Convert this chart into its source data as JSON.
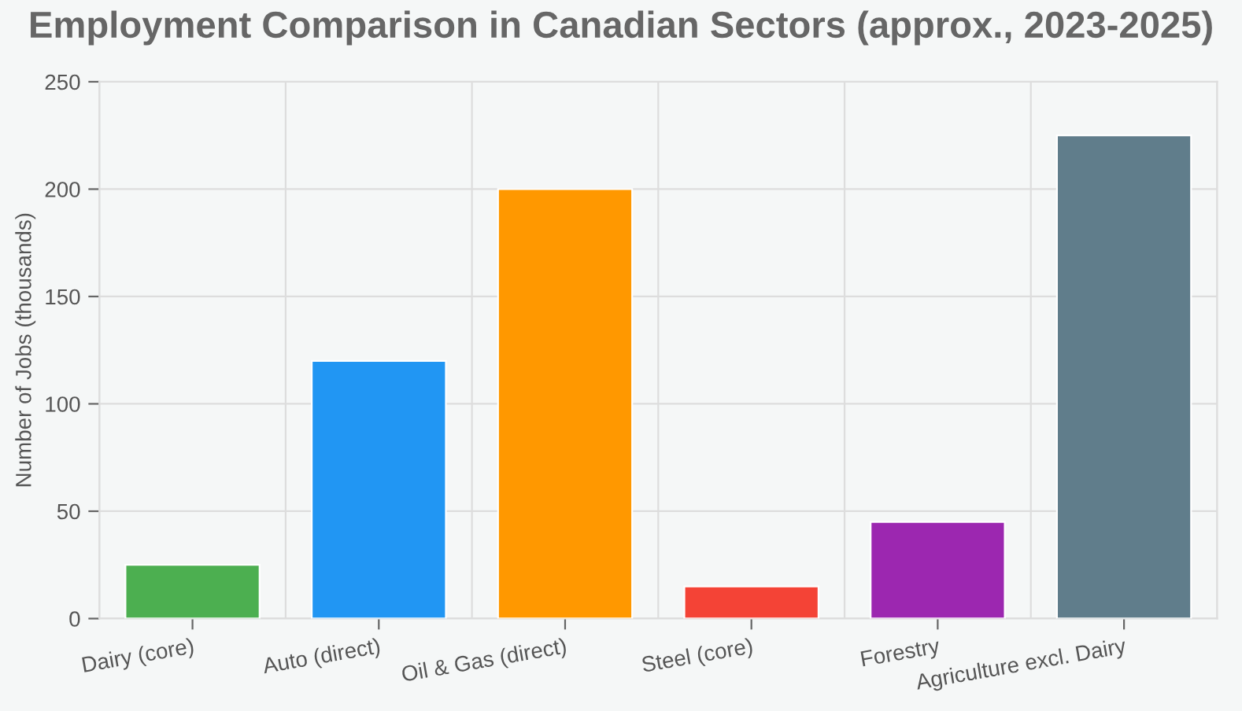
{
  "chart_data": {
    "type": "bar",
    "title": "Employment Comparison in Canadian Sectors (approx., 2023-2025)",
    "ylabel": "Number of Jobs (thousands)",
    "categories": [
      "Dairy (core)",
      "Auto (direct)",
      "Oil & Gas (direct)",
      "Steel (core)",
      "Forestry",
      "Agriculture excl. Dairy"
    ],
    "values": [
      25,
      120,
      200,
      15,
      45,
      225
    ],
    "colors": [
      "#4caf50",
      "#2196f3",
      "#ff9800",
      "#f44336",
      "#9c27b0",
      "#607d8b"
    ],
    "ylim": [
      0,
      250
    ],
    "yticks": [
      0,
      50,
      100,
      150,
      200,
      250
    ],
    "grid": true,
    "legend": false
  }
}
